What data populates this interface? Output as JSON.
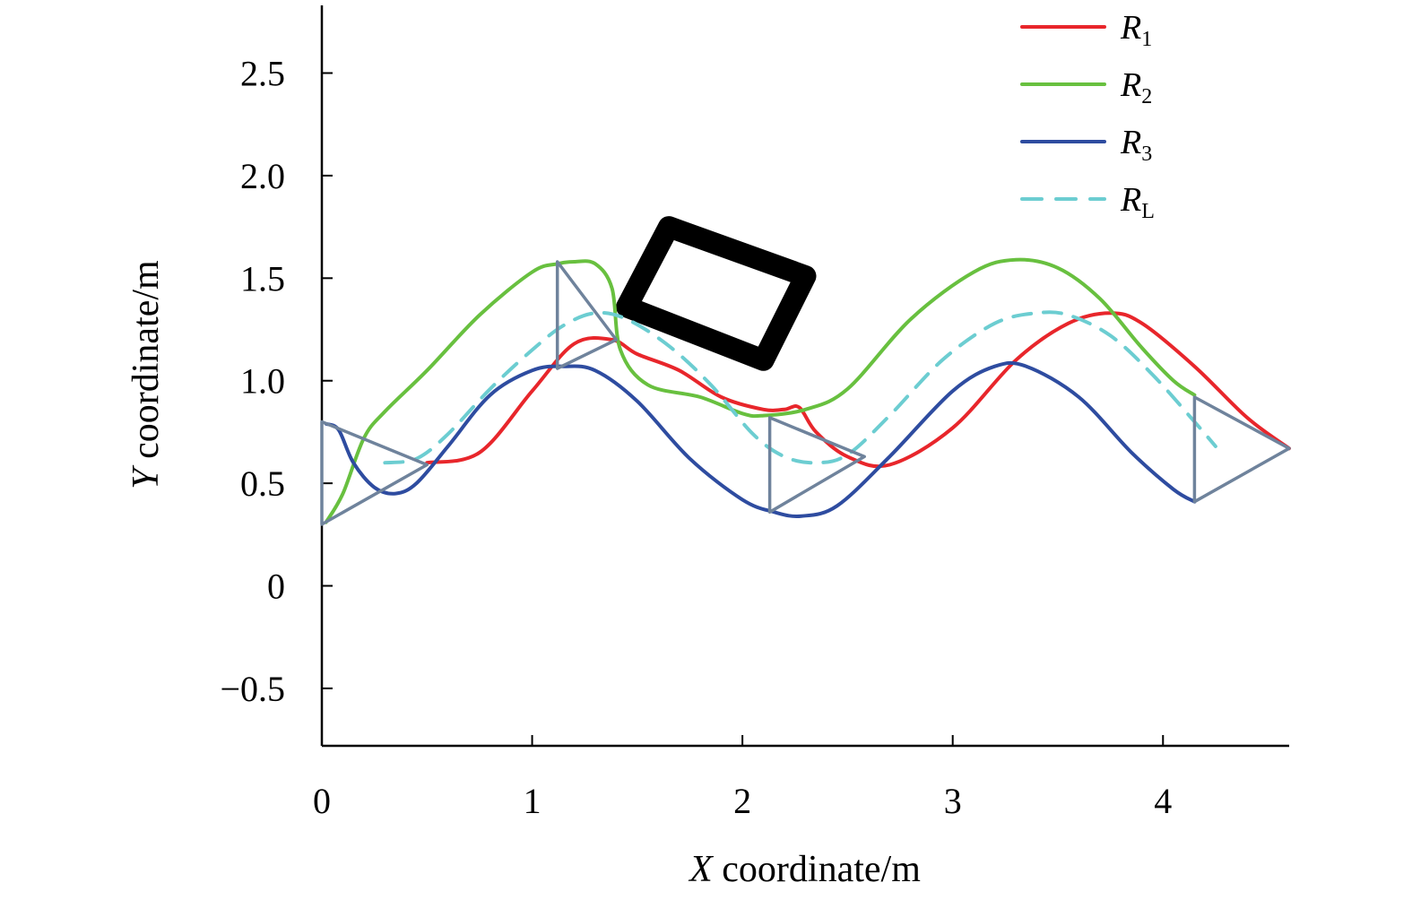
{
  "chart_data": {
    "type": "line",
    "xlabel": "X coordinate/m",
    "ylabel": "Y coordinate/m",
    "xlabel_var": "X",
    "xlabel_rest": " coordinate/m",
    "ylabel_var": "Y",
    "ylabel_rest": " coordinate/m",
    "xlim": [
      0,
      4.6
    ],
    "ylim": [
      -0.78,
      2.83
    ],
    "xticks": [
      0,
      1,
      2,
      3,
      4
    ],
    "xtick_labels": [
      "0",
      "1",
      "2",
      "3",
      "4"
    ],
    "yticks": [
      -0.5,
      0,
      0.5,
      1.0,
      1.5,
      2.0,
      2.5
    ],
    "ytick_labels": [
      "−0.5",
      "0",
      "0.5",
      "1.0",
      "1.5",
      "2.0",
      "2.5"
    ],
    "grid": false,
    "legend_position": "top-right",
    "series": [
      {
        "name": "R1",
        "label_main": "R",
        "label_sub": "1",
        "color": "#e8262b",
        "dash": "solid",
        "x": [
          0.5,
          0.75,
          1.0,
          1.2,
          1.38,
          1.5,
          1.7,
          1.9,
          2.1,
          2.2,
          2.27,
          2.35,
          2.5,
          2.7,
          3.0,
          3.3,
          3.55,
          3.75,
          3.9,
          4.15,
          4.4,
          4.6
        ],
        "y": [
          0.6,
          0.65,
          0.95,
          1.18,
          1.2,
          1.13,
          1.05,
          0.92,
          0.86,
          0.86,
          0.87,
          0.75,
          0.63,
          0.59,
          0.77,
          1.1,
          1.28,
          1.33,
          1.28,
          1.07,
          0.82,
          0.67
        ]
      },
      {
        "name": "R2",
        "label_main": "R",
        "label_sub": "2",
        "color": "#68c03f",
        "dash": "solid",
        "x": [
          0.02,
          0.1,
          0.2,
          0.3,
          0.5,
          0.75,
          1.0,
          1.12,
          1.2,
          1.3,
          1.38,
          1.42,
          1.55,
          1.8,
          2.0,
          2.1,
          2.3,
          2.5,
          2.8,
          3.1,
          3.3,
          3.5,
          3.7,
          3.9,
          4.05,
          4.15
        ],
        "y": [
          0.31,
          0.45,
          0.72,
          0.85,
          1.05,
          1.32,
          1.53,
          1.57,
          1.58,
          1.57,
          1.45,
          1.15,
          0.98,
          0.92,
          0.84,
          0.83,
          0.86,
          0.96,
          1.3,
          1.53,
          1.59,
          1.55,
          1.4,
          1.16,
          1.0,
          0.93
        ]
      },
      {
        "name": "R3",
        "label_main": "R",
        "label_sub": "3",
        "color": "#2e4ca0",
        "dash": "solid",
        "x": [
          0.02,
          0.08,
          0.15,
          0.25,
          0.35,
          0.45,
          0.6,
          0.8,
          1.0,
          1.15,
          1.3,
          1.5,
          1.75,
          2.0,
          2.15,
          2.28,
          2.45,
          2.7,
          3.0,
          3.2,
          3.35,
          3.6,
          3.85,
          4.05,
          4.15
        ],
        "y": [
          0.79,
          0.76,
          0.6,
          0.48,
          0.45,
          0.5,
          0.68,
          0.93,
          1.05,
          1.07,
          1.05,
          0.9,
          0.62,
          0.42,
          0.36,
          0.34,
          0.39,
          0.63,
          0.95,
          1.07,
          1.07,
          0.92,
          0.65,
          0.47,
          0.41
        ]
      },
      {
        "name": "RL",
        "label_main": "R",
        "label_sub": "L",
        "color": "#6ccdd1",
        "dash": "dashed",
        "x": [
          0.3,
          0.45,
          0.6,
          0.8,
          1.0,
          1.15,
          1.3,
          1.45,
          1.65,
          1.85,
          2.05,
          2.2,
          2.35,
          2.5,
          2.7,
          2.95,
          3.2,
          3.4,
          3.55,
          3.75,
          3.95,
          4.15,
          4.25
        ],
        "y": [
          0.6,
          0.62,
          0.74,
          0.96,
          1.15,
          1.27,
          1.33,
          1.3,
          1.17,
          0.98,
          0.74,
          0.63,
          0.6,
          0.64,
          0.83,
          1.1,
          1.28,
          1.33,
          1.32,
          1.22,
          1.03,
          0.8,
          0.68
        ]
      }
    ],
    "formations": [
      {
        "x": [
          0.0,
          0.5,
          0.0
        ],
        "y": [
          0.8,
          0.59,
          0.3
        ]
      },
      {
        "x": [
          1.12,
          1.4,
          1.12
        ],
        "y": [
          1.58,
          1.2,
          1.06
        ]
      },
      {
        "x": [
          2.13,
          2.58,
          2.13
        ],
        "y": [
          0.82,
          0.63,
          0.36
        ]
      },
      {
        "x": [
          4.15,
          4.6,
          4.15
        ],
        "y": [
          0.92,
          0.67,
          0.41
        ]
      }
    ],
    "obstacle": {
      "x": [
        1.65,
        2.3,
        2.1,
        1.45
      ],
      "y": [
        1.75,
        1.51,
        1.1,
        1.36
      ]
    }
  }
}
